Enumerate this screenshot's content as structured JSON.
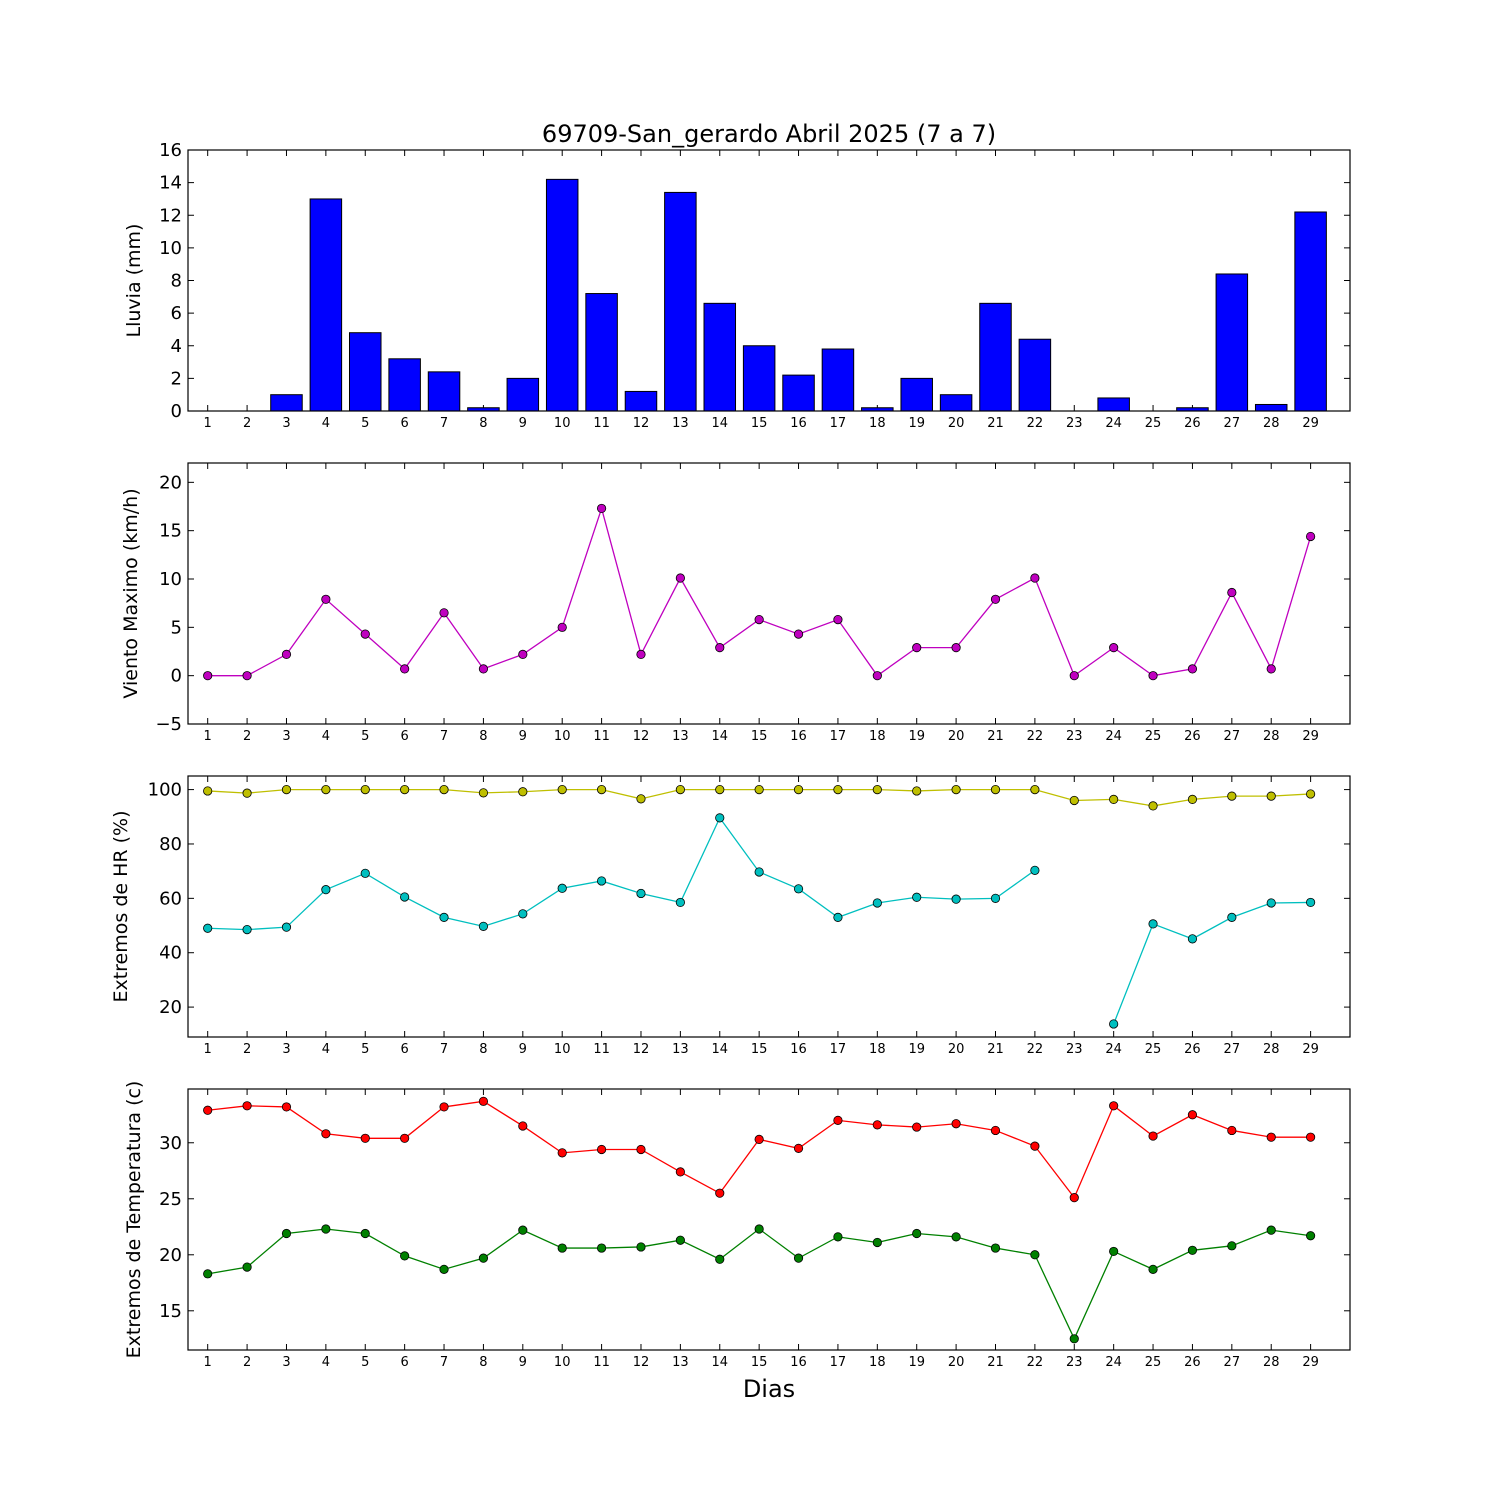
{
  "chart_data": [
    {
      "type": "bar",
      "title": "69709-San_gerardo Abril 2025  (7 a 7)",
      "ylabel": "Lluvia (mm)",
      "xlabel": "",
      "categories": [
        1,
        2,
        3,
        4,
        5,
        6,
        7,
        8,
        9,
        10,
        11,
        12,
        13,
        14,
        15,
        16,
        17,
        18,
        19,
        20,
        21,
        22,
        23,
        24,
        25,
        26,
        27,
        28,
        29
      ],
      "values": [
        0,
        0,
        1.0,
        13.0,
        4.8,
        3.2,
        2.4,
        0.2,
        2.0,
        14.2,
        7.2,
        1.2,
        13.4,
        6.6,
        4.0,
        2.2,
        3.8,
        0.2,
        2.0,
        1.0,
        6.6,
        4.4,
        0,
        0.8,
        0,
        0.2,
        8.4,
        0.4,
        12.2
      ],
      "ylim": [
        0,
        16
      ],
      "yticks": [
        0,
        2,
        4,
        6,
        8,
        10,
        12,
        14,
        16
      ],
      "color": "#0000ff"
    },
    {
      "type": "line",
      "ylabel": "Viento Maximo (km/h)",
      "x": [
        1,
        2,
        3,
        4,
        5,
        6,
        7,
        8,
        9,
        10,
        11,
        12,
        13,
        14,
        15,
        16,
        17,
        18,
        19,
        20,
        21,
        22,
        23,
        24,
        25,
        26,
        27,
        28,
        29
      ],
      "series": [
        {
          "values": [
            0,
            0,
            2.2,
            7.9,
            4.3,
            0.7,
            6.5,
            0.7,
            2.2,
            5.0,
            17.3,
            2.2,
            10.1,
            2.9,
            5.8,
            4.3,
            5.8,
            0,
            2.9,
            2.9,
            7.9,
            10.1,
            0,
            2.9,
            0,
            0.7,
            8.6,
            0.7,
            14.4
          ],
          "color": "#bf00bf"
        }
      ],
      "ylim": [
        -5,
        22
      ],
      "yticks": [
        -5,
        0,
        5,
        10,
        15,
        20
      ],
      "ytick_labels": [
        "−5",
        "0",
        "5",
        "10",
        "15",
        "20"
      ]
    },
    {
      "type": "line",
      "ylabel": "Extremos de HR (%)",
      "x": [
        1,
        2,
        3,
        4,
        5,
        6,
        7,
        8,
        9,
        10,
        11,
        12,
        13,
        14,
        15,
        16,
        17,
        18,
        19,
        20,
        21,
        22,
        23,
        24,
        25,
        26,
        27,
        28,
        29
      ],
      "series": [
        {
          "values": [
            99.5,
            98.7,
            100,
            100,
            100,
            100,
            100,
            98.8,
            99.2,
            100,
            100,
            96.6,
            100,
            100,
            100,
            100,
            100,
            100,
            99.5,
            100,
            100,
            100,
            96.0,
            96.4,
            94.0,
            96.4,
            97.6,
            97.6,
            98.4
          ],
          "color": "#bfbf00"
        },
        {
          "values": [
            49,
            48.5,
            49.4,
            63.2,
            69.2,
            60.5,
            53,
            49.7,
            54.3,
            63.7,
            66.4,
            61.8,
            58.5,
            89.6,
            69.7,
            63.5,
            53,
            58.3,
            60.4,
            59.7,
            60,
            70.3,
            null,
            13.8,
            50.6,
            45.1,
            53,
            58.3,
            58.5
          ],
          "color": "#00bfbf"
        }
      ],
      "ylim": [
        9,
        105
      ],
      "yticks": [
        20,
        40,
        60,
        80,
        100
      ]
    },
    {
      "type": "line",
      "ylabel": "Extremos de Temperatura (c)",
      "xlabel": "Dias",
      "x": [
        1,
        2,
        3,
        4,
        5,
        6,
        7,
        8,
        9,
        10,
        11,
        12,
        13,
        14,
        15,
        16,
        17,
        18,
        19,
        20,
        21,
        22,
        23,
        24,
        25,
        26,
        27,
        28,
        29
      ],
      "series": [
        {
          "values": [
            32.9,
            33.3,
            33.2,
            30.8,
            30.4,
            30.4,
            33.2,
            33.7,
            31.5,
            29.1,
            29.4,
            29.4,
            27.4,
            25.5,
            30.3,
            29.5,
            32.0,
            31.6,
            31.4,
            31.7,
            31.1,
            29.7,
            25.1,
            33.3,
            30.6,
            32.5,
            31.1,
            30.5,
            30.5
          ],
          "color": "#ff0000"
        },
        {
          "values": [
            18.3,
            18.9,
            21.9,
            22.3,
            21.9,
            19.9,
            18.7,
            19.7,
            22.2,
            20.6,
            20.6,
            20.7,
            21.3,
            19.6,
            22.3,
            19.7,
            21.6,
            21.1,
            21.9,
            21.6,
            20.6,
            20.0,
            12.5,
            20.3,
            18.7,
            20.4,
            20.8,
            22.2,
            21.7
          ],
          "color": "#008000"
        }
      ],
      "ylim": [
        11.5,
        34.8
      ],
      "yticks": [
        15,
        20,
        25,
        30
      ]
    }
  ]
}
